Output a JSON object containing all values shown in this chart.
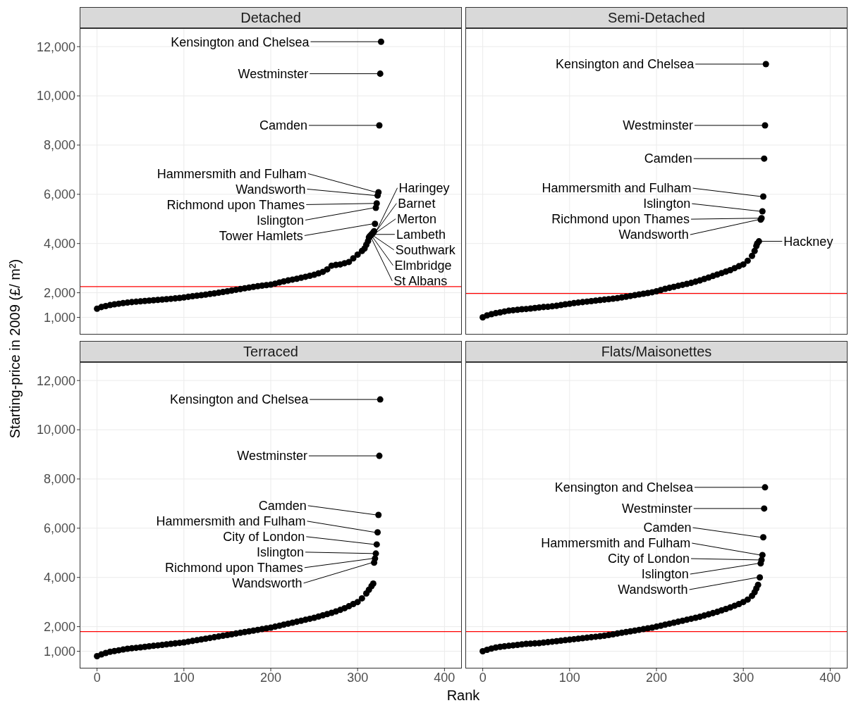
{
  "chart_data": [
    {
      "type": "scatter",
      "title": "Detached",
      "ylabel": "Starting-price in 2009 (£/ m²)",
      "xlim": [
        -20,
        420
      ],
      "xticks": [
        0,
        100,
        200,
        300,
        400
      ],
      "ylim": [
        300,
        12750
      ],
      "yticks": [
        {
          "value": 1000,
          "label": "1,000"
        },
        {
          "value": 2000,
          "label": "2,000"
        },
        {
          "value": 4000,
          "label": "4,000"
        },
        {
          "value": 6000,
          "label": "6,000"
        },
        {
          "value": 8000,
          "label": "8,000"
        },
        {
          "value": 10000,
          "label": "10,000"
        },
        {
          "value": 12000,
          "label": "12,000"
        }
      ],
      "tick_labels": "y",
      "grid": true,
      "marker": "circle",
      "color": "#000000",
      "x": [
        0,
        5,
        10,
        15,
        20,
        25,
        30,
        35,
        40,
        45,
        50,
        55,
        60,
        65,
        70,
        75,
        80,
        85,
        90,
        95,
        100,
        105,
        110,
        115,
        120,
        125,
        130,
        135,
        140,
        145,
        150,
        155,
        160,
        165,
        170,
        175,
        180,
        185,
        190,
        195,
        200,
        205,
        210,
        215,
        220,
        225,
        230,
        235,
        240,
        245,
        250,
        255,
        260,
        265,
        270,
        275,
        280,
        285,
        290,
        295,
        300,
        305,
        308,
        310,
        312,
        313,
        314,
        315,
        316,
        317,
        318,
        319,
        320,
        321,
        322,
        323,
        324,
        325,
        326,
        327
      ],
      "values": [
        1350,
        1420,
        1460,
        1500,
        1530,
        1555,
        1580,
        1600,
        1620,
        1635,
        1650,
        1665,
        1680,
        1695,
        1710,
        1725,
        1740,
        1755,
        1770,
        1790,
        1810,
        1835,
        1860,
        1880,
        1900,
        1925,
        1950,
        1975,
        2000,
        2030,
        2060,
        2090,
        2120,
        2150,
        2180,
        2210,
        2240,
        2265,
        2290,
        2310,
        2330,
        2370,
        2420,
        2460,
        2500,
        2535,
        2570,
        2610,
        2650,
        2690,
        2730,
        2790,
        2850,
        2950,
        3100,
        3130,
        3150,
        3200,
        3250,
        3400,
        3550,
        3700,
        3800,
        3950,
        4100,
        4250,
        4300,
        4330,
        4370,
        4400,
        4450,
        4500,
        4800,
        5450,
        5630,
        5950,
        6080,
        8800,
        10900,
        12200
      ],
      "ref_lines": [
        {
          "axis": "y",
          "value": 2250,
          "color": "#ff0000"
        }
      ],
      "annotations": [
        {
          "text": "Kensington and Chelsea",
          "x": 327,
          "y": 12200
        },
        {
          "text": "Westminster",
          "x": 326,
          "y": 10900
        },
        {
          "text": "Camden",
          "x": 325,
          "y": 8800
        },
        {
          "text": "Hammersmith and Fulham",
          "x": 324,
          "y": 6080
        },
        {
          "text": "Wandsworth",
          "x": 323,
          "y": 5950
        },
        {
          "text": "Richmond upon Thames",
          "x": 322,
          "y": 5630
        },
        {
          "text": "Islington",
          "x": 321,
          "y": 5450
        },
        {
          "text": "Tower Hamlets",
          "x": 320,
          "y": 4800
        },
        {
          "text": "Haringey",
          "x": 319,
          "y": 4500
        },
        {
          "text": "Barnet",
          "x": 318,
          "y": 4450
        },
        {
          "text": "Merton",
          "x": 317,
          "y": 4400
        },
        {
          "text": "Lambeth",
          "x": 316,
          "y": 4370
        },
        {
          "text": "Southwark",
          "x": 315,
          "y": 4330
        },
        {
          "text": "Elmbridge",
          "x": 314,
          "y": 4300
        },
        {
          "text": "St Albans",
          "x": 313,
          "y": 4250
        }
      ]
    },
    {
      "type": "scatter",
      "title": "Semi-Detached",
      "xlim": [
        -20,
        420
      ],
      "xticks": [
        0,
        100,
        200,
        300,
        400
      ],
      "ylim": [
        300,
        12750
      ],
      "yticks": [
        1000,
        2000,
        4000,
        6000,
        8000,
        10000,
        12000
      ],
      "tick_labels": false,
      "grid": true,
      "marker": "circle",
      "color": "#000000",
      "x": [
        0,
        5,
        10,
        15,
        20,
        25,
        30,
        35,
        40,
        45,
        50,
        55,
        60,
        65,
        70,
        75,
        80,
        85,
        90,
        95,
        100,
        105,
        110,
        115,
        120,
        125,
        130,
        135,
        140,
        145,
        150,
        155,
        160,
        165,
        170,
        175,
        180,
        185,
        190,
        195,
        200,
        205,
        210,
        215,
        220,
        225,
        230,
        235,
        240,
        245,
        250,
        255,
        260,
        265,
        270,
        275,
        280,
        285,
        290,
        295,
        300,
        305,
        310,
        313,
        315,
        316,
        318,
        320,
        321,
        322,
        323,
        324,
        325,
        326
      ],
      "values": [
        1000,
        1080,
        1130,
        1170,
        1200,
        1240,
        1270,
        1290,
        1310,
        1330,
        1340,
        1360,
        1380,
        1400,
        1420,
        1430,
        1450,
        1470,
        1500,
        1530,
        1550,
        1580,
        1600,
        1620,
        1640,
        1660,
        1680,
        1700,
        1720,
        1740,
        1760,
        1780,
        1810,
        1840,
        1870,
        1900,
        1930,
        1960,
        1990,
        2020,
        2060,
        2110,
        2160,
        2200,
        2240,
        2280,
        2320,
        2360,
        2400,
        2450,
        2500,
        2560,
        2620,
        2680,
        2740,
        2800,
        2860,
        2920,
        3000,
        3080,
        3150,
        3300,
        3500,
        3700,
        3900,
        4000,
        4090,
        4970,
        5030,
        5310,
        5910,
        7450,
        8800,
        11290
      ],
      "ref_lines": [
        {
          "axis": "y",
          "value": 1970,
          "color": "#ff0000"
        }
      ],
      "annotations": [
        {
          "text": "Kensington and Chelsea",
          "x": 326,
          "y": 11290
        },
        {
          "text": "Westminster",
          "x": 325,
          "y": 8800
        },
        {
          "text": "Camden",
          "x": 324,
          "y": 7450
        },
        {
          "text": "Hammersmith and Fulham",
          "x": 323,
          "y": 5910
        },
        {
          "text": "Islington",
          "x": 322,
          "y": 5310
        },
        {
          "text": "Richmond upon Thames",
          "x": 321,
          "y": 5030
        },
        {
          "text": "Wandsworth",
          "x": 320,
          "y": 4970
        },
        {
          "text": "Hackney",
          "x": 318,
          "y": 4090
        }
      ]
    },
    {
      "type": "scatter",
      "title": "Terraced",
      "xlabel": "Rank",
      "xlim": [
        -20,
        420
      ],
      "xticks": [
        0,
        100,
        200,
        300,
        400
      ],
      "ylim": [
        300,
        12750
      ],
      "yticks": [
        {
          "value": 1000,
          "label": "1,000"
        },
        {
          "value": 2000,
          "label": "2,000"
        },
        {
          "value": 4000,
          "label": "4,000"
        },
        {
          "value": 6000,
          "label": "6,000"
        },
        {
          "value": 8000,
          "label": "8,000"
        },
        {
          "value": 10000,
          "label": "10,000"
        },
        {
          "value": 12000,
          "label": "12,000"
        }
      ],
      "grid": true,
      "marker": "circle",
      "color": "#000000",
      "x": [
        0,
        5,
        10,
        15,
        20,
        25,
        30,
        35,
        40,
        45,
        50,
        55,
        60,
        65,
        70,
        75,
        80,
        85,
        90,
        95,
        100,
        105,
        110,
        115,
        120,
        125,
        130,
        135,
        140,
        145,
        150,
        155,
        160,
        165,
        170,
        175,
        180,
        185,
        190,
        195,
        200,
        205,
        210,
        215,
        220,
        225,
        230,
        235,
        240,
        245,
        250,
        255,
        260,
        265,
        270,
        275,
        280,
        285,
        290,
        295,
        300,
        305,
        310,
        313,
        316,
        318,
        319,
        320,
        321,
        322,
        323,
        324,
        325,
        326
      ],
      "values": [
        800,
        870,
        930,
        980,
        1010,
        1040,
        1070,
        1100,
        1120,
        1140,
        1160,
        1180,
        1200,
        1220,
        1240,
        1260,
        1280,
        1300,
        1320,
        1340,
        1360,
        1390,
        1420,
        1450,
        1480,
        1510,
        1540,
        1570,
        1600,
        1630,
        1660,
        1690,
        1720,
        1750,
        1780,
        1810,
        1840,
        1870,
        1900,
        1930,
        1960,
        2000,
        2040,
        2080,
        2120,
        2160,
        2200,
        2240,
        2280,
        2320,
        2360,
        2410,
        2460,
        2510,
        2560,
        2620,
        2680,
        2750,
        2830,
        2920,
        3000,
        3150,
        3350,
        3500,
        3650,
        3750,
        4600,
        4770,
        4970,
        5340,
        5830,
        6540,
        8940,
        11230
      ],
      "ref_lines": [
        {
          "axis": "y",
          "value": 1800,
          "color": "#ff0000"
        }
      ],
      "annotations": [
        {
          "text": "Kensington and Chelsea",
          "x": 326,
          "y": 11230
        },
        {
          "text": "Westminster",
          "x": 325,
          "y": 8940
        },
        {
          "text": "Camden",
          "x": 324,
          "y": 6540
        },
        {
          "text": "Hammersmith and Fulham",
          "x": 323,
          "y": 5830
        },
        {
          "text": "City of London",
          "x": 322,
          "y": 5340
        },
        {
          "text": "Islington",
          "x": 321,
          "y": 4970
        },
        {
          "text": "Richmond upon Thames",
          "x": 320,
          "y": 4770
        },
        {
          "text": "Wandsworth",
          "x": 319,
          "y": 4600
        }
      ]
    },
    {
      "type": "scatter",
      "title": "Flats/Maisonettes",
      "xlim": [
        -20,
        420
      ],
      "xticks": [
        0,
        100,
        200,
        300,
        400
      ],
      "ylim": [
        300,
        12750
      ],
      "yticks": [
        1000,
        2000,
        4000,
        6000,
        8000,
        10000,
        12000
      ],
      "tick_labels": "x",
      "grid": true,
      "marker": "circle",
      "color": "#000000",
      "x": [
        0,
        5,
        10,
        15,
        20,
        25,
        30,
        35,
        40,
        45,
        50,
        55,
        60,
        65,
        70,
        75,
        80,
        85,
        90,
        95,
        100,
        105,
        110,
        115,
        120,
        125,
        130,
        135,
        140,
        145,
        150,
        155,
        160,
        165,
        170,
        175,
        180,
        185,
        190,
        195,
        200,
        205,
        210,
        215,
        220,
        225,
        230,
        235,
        240,
        245,
        250,
        255,
        260,
        265,
        270,
        275,
        280,
        285,
        290,
        295,
        300,
        305,
        310,
        313,
        315,
        317,
        319,
        320,
        321,
        322,
        323,
        324,
        325
      ],
      "values": [
        1000,
        1060,
        1110,
        1150,
        1180,
        1200,
        1220,
        1240,
        1260,
        1280,
        1300,
        1310,
        1320,
        1330,
        1350,
        1370,
        1390,
        1410,
        1430,
        1450,
        1470,
        1490,
        1510,
        1530,
        1550,
        1570,
        1590,
        1610,
        1630,
        1660,
        1690,
        1720,
        1750,
        1780,
        1810,
        1840,
        1870,
        1900,
        1930,
        1960,
        2000,
        2040,
        2080,
        2120,
        2160,
        2200,
        2240,
        2280,
        2320,
        2360,
        2400,
        2450,
        2500,
        2550,
        2600,
        2660,
        2720,
        2780,
        2850,
        2920,
        3000,
        3100,
        3250,
        3400,
        3550,
        3700,
        4000,
        4570,
        4710,
        4910,
        5630,
        6800,
        7660
      ],
      "ref_lines": [
        {
          "axis": "y",
          "value": 1800,
          "color": "#ff0000"
        }
      ],
      "annotations": [
        {
          "text": "Kensington and Chelsea",
          "x": 325,
          "y": 7660
        },
        {
          "text": "Westminster",
          "x": 324,
          "y": 6800
        },
        {
          "text": "Camden",
          "x": 323,
          "y": 5630
        },
        {
          "text": "Hammersmith and Fulham",
          "x": 322,
          "y": 4910
        },
        {
          "text": "City of London",
          "x": 321,
          "y": 4710
        },
        {
          "text": "Islington",
          "x": 320,
          "y": 4570
        },
        {
          "text": "Wandsworth",
          "x": 319,
          "y": 4000
        }
      ]
    }
  ]
}
